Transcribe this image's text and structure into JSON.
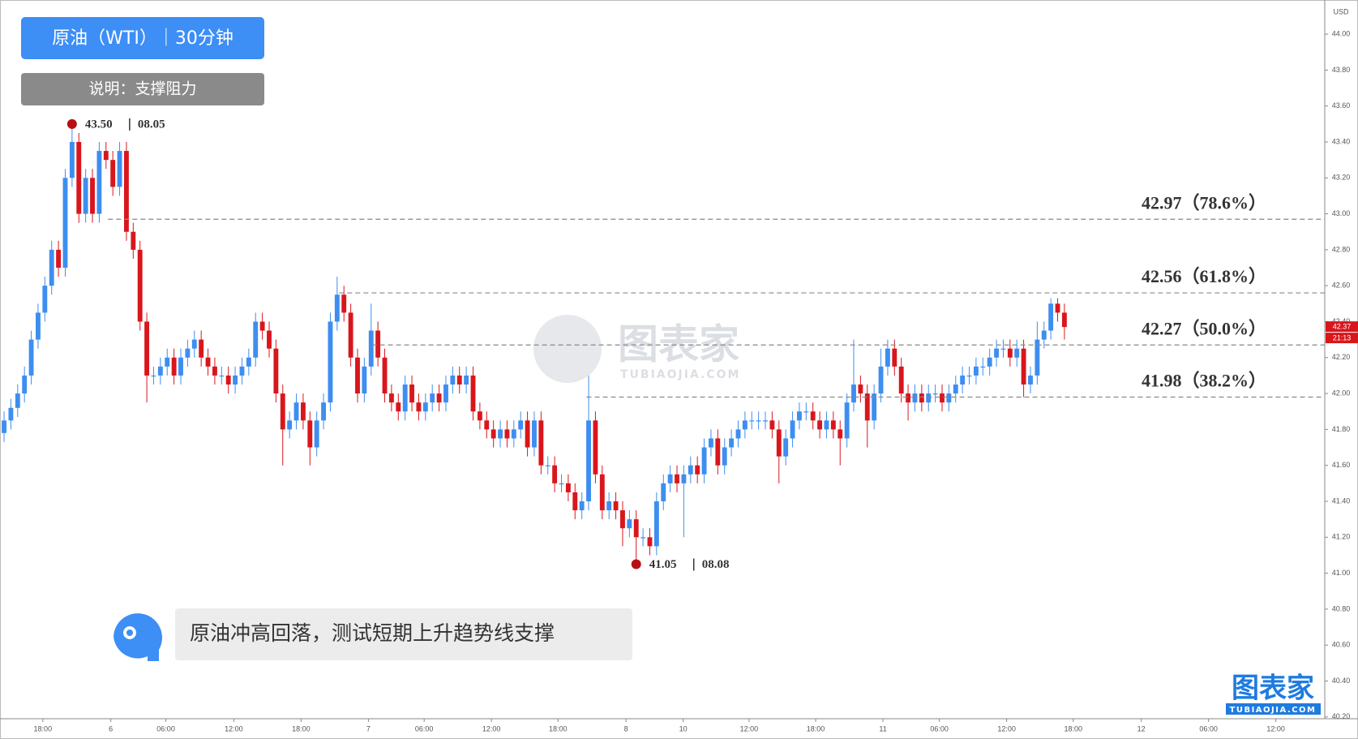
{
  "chart_data": {
    "type": "candlestick",
    "title": "原油（WTI）｜30分钟",
    "subtitle": "说明：支撑阻力",
    "annotation": "原油冲高回落，测试短期上升趋势线支撑",
    "currency": "USD",
    "countdown": "21:13",
    "brand": {
      "name": "图表家",
      "site": "TUBIAOJIA.COM"
    },
    "up_color": "#3d8ef0",
    "down_color": "#d9161c",
    "grid": false,
    "xlim": [
      -0.6,
      194.3
    ],
    "ylim": [
      40.19,
      44.19
    ],
    "xticks": [
      {
        "value": 5.7,
        "label": "18:00"
      },
      {
        "value": 15.7,
        "label": "6"
      },
      {
        "value": 23.8,
        "label": "06:00"
      },
      {
        "value": 33.8,
        "label": "12:00"
      },
      {
        "value": 43.7,
        "label": "18:00"
      },
      {
        "value": 53.6,
        "label": "7"
      },
      {
        "value": 61.8,
        "label": "06:00"
      },
      {
        "value": 71.7,
        "label": "12:00"
      },
      {
        "value": 81.5,
        "label": "18:00"
      },
      {
        "value": 91.5,
        "label": "8"
      },
      {
        "value": 99.9,
        "label": "10"
      },
      {
        "value": 109.6,
        "label": "12:00"
      },
      {
        "value": 119.4,
        "label": "18:00"
      },
      {
        "value": 129.3,
        "label": "11"
      },
      {
        "value": 137.6,
        "label": "06:00"
      },
      {
        "value": 147.5,
        "label": "12:00"
      },
      {
        "value": 157.3,
        "label": "18:00"
      },
      {
        "value": 167.3,
        "label": "12"
      },
      {
        "value": 177.2,
        "label": "06:00"
      },
      {
        "value": 187.1,
        "label": "12:00"
      }
    ],
    "yticks": [
      {
        "value": 40.2,
        "label": "40.20"
      },
      {
        "value": 40.4,
        "label": "40.40"
      },
      {
        "value": 40.6,
        "label": "40.60"
      },
      {
        "value": 40.8,
        "label": "40.80"
      },
      {
        "value": 41.0,
        "label": "41.00"
      },
      {
        "value": 41.2,
        "label": "41.20"
      },
      {
        "value": 41.4,
        "label": "41.40"
      },
      {
        "value": 41.6,
        "label": "41.60"
      },
      {
        "value": 41.8,
        "label": "41.80"
      },
      {
        "value": 42.0,
        "label": "42.00"
      },
      {
        "value": 42.2,
        "label": "42.20"
      },
      {
        "value": 42.4,
        "label": "42.40"
      },
      {
        "value": 42.6,
        "label": "42.60"
      },
      {
        "value": 42.8,
        "label": "42.80"
      },
      {
        "value": 43.0,
        "label": "43.00"
      },
      {
        "value": 43.2,
        "label": "43.20"
      },
      {
        "value": 43.4,
        "label": "43.40"
      },
      {
        "value": 43.6,
        "label": "43.60"
      },
      {
        "value": 43.8,
        "label": "43.80"
      },
      {
        "value": 44.0,
        "label": "44.00"
      }
    ],
    "levels": [
      {
        "value": 42.97,
        "label": "42.97（78.6%）",
        "x_start": 15.3
      },
      {
        "value": 42.56,
        "label": "42.56（61.8%）",
        "x_start": 49.3
      },
      {
        "value": 42.27,
        "label": "42.27（50.0%）",
        "x_start": 54.1
      },
      {
        "value": 41.98,
        "label": "41.98（38.2%）",
        "x_start": 85.7
      }
    ],
    "extremes": [
      {
        "x": 10,
        "value": 43.5,
        "label": "43.50",
        "date": "08.05"
      },
      {
        "x": 93,
        "value": 41.05,
        "label": "41.05",
        "date": "08.08"
      }
    ],
    "open": [
      41.78,
      41.85,
      41.92,
      42.0,
      42.1,
      42.3,
      42.45,
      42.6,
      42.8,
      42.7,
      43.2,
      43.4,
      43.0,
      43.2,
      43.0,
      43.35,
      43.3,
      43.15,
      43.35,
      42.9,
      42.8,
      42.4,
      42.1,
      42.1,
      42.15,
      42.2,
      42.1,
      42.2,
      42.25,
      42.3,
      42.2,
      42.15,
      42.1,
      42.1,
      42.05,
      42.1,
      42.15,
      42.2,
      42.4,
      42.35,
      42.25,
      42.0,
      41.8,
      41.85,
      41.95,
      41.85,
      41.7,
      41.85,
      41.95,
      42.4,
      42.55,
      42.45,
      42.2,
      42.0,
      42.15,
      42.35,
      42.2,
      42.0,
      41.95,
      41.9,
      42.05,
      41.95,
      41.9,
      41.95,
      42.0,
      41.95,
      42.05,
      42.1,
      42.05,
      42.1,
      41.9,
      41.85,
      41.8,
      41.75,
      41.8,
      41.75,
      41.8,
      41.85,
      41.7,
      41.85,
      41.6,
      41.6,
      41.5,
      41.5,
      41.45,
      41.35,
      41.4,
      41.85,
      41.55,
      41.35,
      41.4,
      41.35,
      41.25,
      41.3,
      41.2,
      41.2,
      41.15,
      41.4,
      41.5,
      41.55,
      41.5,
      41.55,
      41.6,
      41.55,
      41.7,
      41.75,
      41.6,
      41.7,
      41.75,
      41.8,
      41.85,
      41.85,
      41.85,
      41.85,
      41.8,
      41.65,
      41.75,
      41.85,
      41.9,
      41.9,
      41.85,
      41.8,
      41.85,
      41.8,
      41.75,
      41.95,
      42.05,
      42.0,
      41.85,
      42.0,
      42.15,
      42.25,
      42.15,
      42.0,
      41.95,
      42.0,
      41.95,
      42.0,
      42.0,
      41.95,
      42.0,
      42.05,
      42.1,
      42.1,
      42.15,
      42.15,
      42.2,
      42.25,
      42.25,
      42.2,
      42.25,
      42.05,
      42.1,
      42.3,
      42.35,
      42.5,
      42.45
    ],
    "high": [
      41.9,
      41.97,
      42.05,
      42.15,
      42.35,
      42.5,
      42.65,
      42.85,
      42.85,
      43.25,
      43.5,
      43.45,
      43.25,
      43.25,
      43.4,
      43.4,
      43.35,
      43.4,
      43.4,
      42.95,
      42.85,
      42.45,
      42.15,
      42.2,
      42.25,
      42.25,
      42.25,
      42.3,
      42.35,
      42.35,
      42.25,
      42.2,
      42.15,
      42.15,
      42.15,
      42.2,
      42.25,
      42.45,
      42.45,
      42.4,
      42.3,
      42.05,
      41.9,
      42.0,
      42.0,
      41.9,
      41.9,
      42.0,
      42.45,
      42.65,
      42.6,
      42.5,
      42.25,
      42.2,
      42.5,
      42.4,
      42.25,
      42.05,
      42.0,
      42.1,
      42.1,
      42.0,
      42.0,
      42.05,
      42.05,
      42.1,
      42.15,
      42.15,
      42.15,
      42.15,
      41.95,
      41.9,
      41.85,
      41.85,
      41.85,
      41.85,
      41.9,
      41.9,
      41.9,
      41.9,
      41.65,
      41.65,
      41.55,
      41.55,
      41.5,
      41.45,
      42.1,
      41.9,
      41.6,
      41.45,
      41.45,
      41.4,
      41.35,
      41.35,
      41.25,
      41.25,
      41.45,
      41.55,
      41.6,
      41.6,
      41.6,
      41.65,
      41.65,
      41.75,
      41.8,
      41.8,
      41.75,
      41.8,
      41.85,
      41.9,
      41.9,
      41.9,
      41.9,
      41.9,
      41.85,
      41.8,
      41.9,
      41.95,
      41.95,
      41.95,
      41.9,
      41.9,
      41.9,
      41.85,
      42.0,
      42.3,
      42.1,
      42.05,
      42.05,
      42.25,
      42.3,
      42.3,
      42.2,
      42.05,
      42.05,
      42.05,
      42.05,
      42.05,
      42.05,
      42.05,
      42.1,
      42.15,
      42.15,
      42.2,
      42.2,
      42.25,
      42.3,
      42.3,
      42.3,
      42.3,
      42.3,
      42.15,
      42.4,
      42.4,
      42.53,
      42.53,
      42.5
    ],
    "low": [
      41.73,
      41.8,
      41.87,
      41.95,
      42.05,
      42.25,
      42.4,
      42.55,
      42.65,
      42.65,
      43.15,
      42.95,
      42.95,
      42.95,
      42.95,
      43.25,
      43.1,
      43.1,
      42.85,
      42.75,
      42.35,
      41.95,
      42.05,
      42.05,
      42.1,
      42.05,
      42.05,
      42.15,
      42.2,
      42.15,
      42.1,
      42.05,
      42.05,
      42.0,
      42.0,
      42.05,
      42.1,
      42.15,
      42.3,
      42.2,
      41.95,
      41.6,
      41.75,
      41.8,
      41.8,
      41.6,
      41.65,
      41.8,
      41.9,
      42.35,
      42.4,
      42.15,
      41.95,
      41.95,
      42.1,
      42.15,
      41.95,
      41.9,
      41.85,
      41.85,
      41.9,
      41.85,
      41.85,
      41.9,
      41.9,
      41.9,
      42.0,
      42.0,
      42.0,
      41.85,
      41.8,
      41.75,
      41.7,
      41.7,
      41.7,
      41.7,
      41.75,
      41.65,
      41.65,
      41.55,
      41.55,
      41.45,
      41.45,
      41.4,
      41.3,
      41.3,
      41.35,
      41.5,
      41.3,
      41.3,
      41.3,
      41.15,
      41.2,
      41.05,
      41.15,
      41.1,
      41.1,
      41.35,
      41.45,
      41.45,
      41.2,
      41.5,
      41.5,
      41.5,
      41.65,
      41.55,
      41.55,
      41.65,
      41.7,
      41.75,
      41.8,
      41.8,
      41.8,
      41.75,
      41.5,
      41.6,
      41.7,
      41.8,
      41.85,
      41.8,
      41.75,
      41.75,
      41.75,
      41.6,
      41.7,
      41.9,
      41.95,
      41.7,
      41.8,
      41.95,
      42.1,
      42.1,
      41.95,
      41.85,
      41.9,
      41.9,
      41.9,
      41.95,
      41.9,
      41.9,
      41.95,
      42.0,
      42.05,
      42.05,
      42.1,
      42.1,
      42.15,
      42.2,
      42.15,
      42.15,
      41.98,
      42.0,
      42.05,
      42.25,
      42.3,
      42.4,
      42.3
    ],
    "close": [
      41.85,
      41.92,
      42.0,
      42.1,
      42.3,
      42.45,
      42.6,
      42.8,
      42.7,
      43.2,
      43.4,
      43.0,
      43.2,
      43.0,
      43.35,
      43.3,
      43.15,
      43.35,
      42.9,
      42.8,
      42.4,
      42.1,
      42.1,
      42.15,
      42.2,
      42.1,
      42.2,
      42.25,
      42.3,
      42.2,
      42.15,
      42.1,
      42.1,
      42.05,
      42.1,
      42.15,
      42.2,
      42.4,
      42.35,
      42.25,
      42.0,
      41.8,
      41.85,
      41.95,
      41.85,
      41.7,
      41.85,
      41.95,
      42.4,
      42.55,
      42.45,
      42.2,
      42.0,
      42.15,
      42.35,
      42.2,
      42.0,
      41.95,
      41.9,
      42.05,
      41.95,
      41.9,
      41.95,
      42.0,
      41.95,
      42.05,
      42.1,
      42.05,
      42.1,
      41.9,
      41.85,
      41.8,
      41.75,
      41.8,
      41.75,
      41.8,
      41.85,
      41.7,
      41.85,
      41.6,
      41.6,
      41.5,
      41.5,
      41.45,
      41.35,
      41.4,
      41.85,
      41.55,
      41.35,
      41.4,
      41.35,
      41.25,
      41.3,
      41.2,
      41.2,
      41.15,
      41.4,
      41.5,
      41.55,
      41.5,
      41.55,
      41.6,
      41.55,
      41.7,
      41.75,
      41.6,
      41.7,
      41.75,
      41.8,
      41.85,
      41.85,
      41.85,
      41.85,
      41.8,
      41.65,
      41.75,
      41.85,
      41.9,
      41.9,
      41.85,
      41.8,
      41.85,
      41.8,
      41.75,
      41.95,
      42.05,
      42.0,
      41.85,
      42.0,
      42.15,
      42.25,
      42.15,
      42.0,
      41.95,
      42.0,
      41.95,
      42.0,
      42.0,
      41.95,
      42.0,
      42.05,
      42.1,
      42.1,
      42.15,
      42.15,
      42.2,
      42.25,
      42.25,
      42.2,
      42.25,
      42.05,
      42.1,
      42.3,
      42.35,
      42.5,
      42.45,
      42.37
    ]
  }
}
